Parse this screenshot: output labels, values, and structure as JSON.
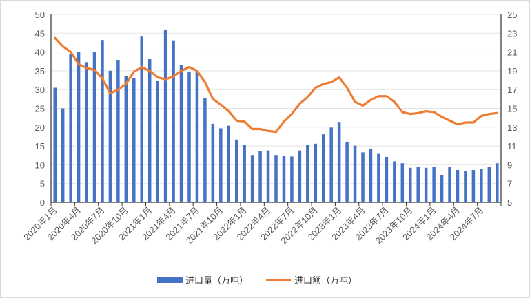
{
  "chart_data": {
    "type": "bar+line",
    "title": "",
    "x": [
      "2020年1月",
      "2020年2月",
      "2020年3月",
      "2020年4月",
      "2020年5月",
      "2020年6月",
      "2020年7月",
      "2020年8月",
      "2020年9月",
      "2020年10月",
      "2020年11月",
      "2020年12月",
      "2021年1月",
      "2021年2月",
      "2021年3月",
      "2021年4月",
      "2021年5月",
      "2021年6月",
      "2021年7月",
      "2021年8月",
      "2021年9月",
      "2021年10月",
      "2021年11月",
      "2021年12月",
      "2022年1月",
      "2022年2月",
      "2022年3月",
      "2022年4月",
      "2022年5月",
      "2022年6月",
      "2022年7月",
      "2022年8月",
      "2022年9月",
      "2022年10月",
      "2022年11月",
      "2022年12月",
      "2023年1月",
      "2023年2月",
      "2023年3月",
      "2023年4月",
      "2023年5月",
      "2023年6月",
      "2023年7月",
      "2023年8月",
      "2023年9月",
      "2023年10月",
      "2023年11月",
      "2023年12月",
      "2024年1月",
      "2024年2月",
      "2024年3月",
      "2024年4月",
      "2024年5月",
      "2024年6月",
      "2024年7月",
      "2024年8月",
      "2024年9月"
    ],
    "x_tick_labels": [
      "2020年1月",
      "2020年4月",
      "2020年7月",
      "2020年10月",
      "2021年1月",
      "2021年4月",
      "2021年7月",
      "2021年10月",
      "2022年1月",
      "2022年4月",
      "2022年7月",
      "2022年10月",
      "2023年1月",
      "2023年4月",
      "2023年7月",
      "2023年10月",
      "2024年1月",
      "2024年4月",
      "2024年7月"
    ],
    "y_left": {
      "range": [
        0,
        50
      ],
      "ticks": [
        0,
        5,
        10,
        15,
        20,
        25,
        30,
        35,
        40,
        45,
        50
      ]
    },
    "y_right": {
      "range": [
        5,
        25
      ],
      "ticks": [
        5,
        7,
        9,
        11,
        13,
        15,
        17,
        19,
        21,
        23,
        25
      ]
    },
    "grid": true,
    "legend_position": "bottom",
    "series": [
      {
        "name": "进口量（万吨）",
        "type": "bar",
        "axis": "left",
        "color": "#4472C4",
        "values": [
          30.5,
          25,
          39.5,
          40,
          37.3,
          40,
          43.2,
          35,
          37.9,
          33.6,
          33.1,
          44.1,
          38.1,
          32.3,
          45.9,
          43.1,
          36.6,
          34.6,
          35.1,
          27.8,
          20.9,
          19.7,
          20.4,
          16.7,
          15.2,
          12.6,
          13.6,
          13.8,
          12.6,
          12.4,
          12.2,
          13.8,
          15.3,
          15.6,
          18.1,
          19.9,
          21.4,
          16.1,
          15.1,
          13.3,
          14.1,
          12.9,
          12.1,
          10.9,
          10.4,
          9.2,
          9.4,
          9.2,
          9.4,
          7.2,
          9.4,
          8.6,
          8.4,
          8.6,
          8.8,
          9.4,
          10.4
        ]
      },
      {
        "name": "进口额（万吨）",
        "type": "line",
        "axis": "right",
        "color": "#ED7D31",
        "values": [
          22.5,
          21.6,
          21.0,
          19.7,
          19.3,
          19.1,
          18.2,
          16.6,
          17.0,
          17.6,
          18.9,
          19.4,
          19.0,
          18.3,
          18.1,
          18.4,
          19.0,
          19.4,
          19.0,
          17.8,
          16.0,
          15.4,
          14.7,
          13.7,
          13.6,
          12.8,
          12.8,
          12.6,
          12.5,
          13.6,
          14.4,
          15.5,
          16.2,
          17.2,
          17.6,
          17.8,
          18.3,
          17.2,
          15.7,
          15.3,
          15.9,
          16.3,
          16.3,
          15.7,
          14.6,
          14.4,
          14.5,
          14.7,
          14.6,
          14.1,
          13.7,
          13.3,
          13.5,
          13.5,
          14.2,
          14.4,
          14.5
        ]
      }
    ]
  }
}
